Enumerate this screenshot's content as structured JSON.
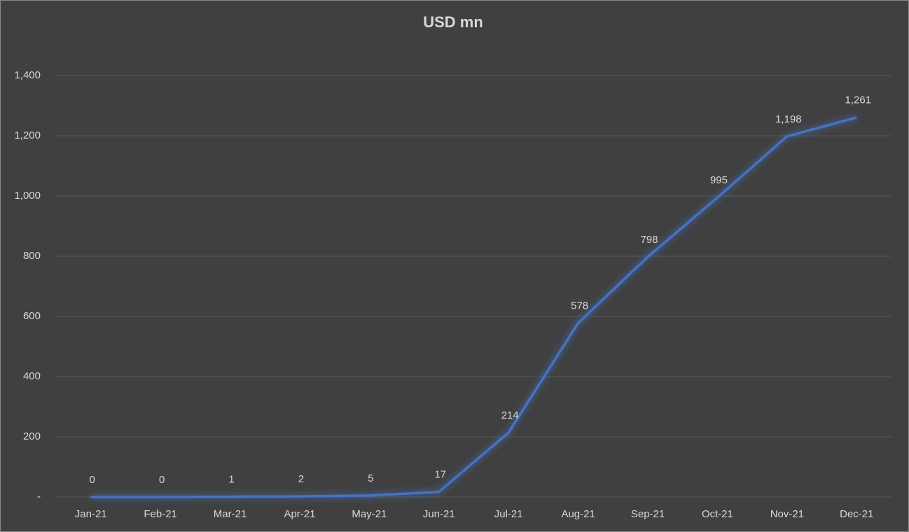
{
  "chart_data": {
    "type": "line",
    "title": "USD mn",
    "categories": [
      "Jan-21",
      "Feb-21",
      "Mar-21",
      "Apr-21",
      "May-21",
      "Jun-21",
      "Jul-21",
      "Aug-21",
      "Sep-21",
      "Oct-21",
      "Nov-21",
      "Dec-21"
    ],
    "values": [
      0,
      0,
      1,
      2,
      5,
      17,
      214,
      578,
      798,
      995,
      1198,
      1261
    ],
    "value_labels": [
      "0",
      "0",
      "1",
      "2",
      "5",
      "17",
      "214",
      "578",
      "798",
      "995",
      "1,198",
      "1,261"
    ],
    "color": "#4472c4",
    "ylim": [
      0,
      1400
    ],
    "yticks": [
      {
        "value": 0,
        "label": "-"
      },
      200,
      400,
      600,
      800,
      {
        "value": 1000,
        "label": "1,000"
      },
      {
        "value": 1200,
        "label": "1,200"
      },
      {
        "value": 1400,
        "label": "1,400"
      }
    ],
    "grid": true
  }
}
